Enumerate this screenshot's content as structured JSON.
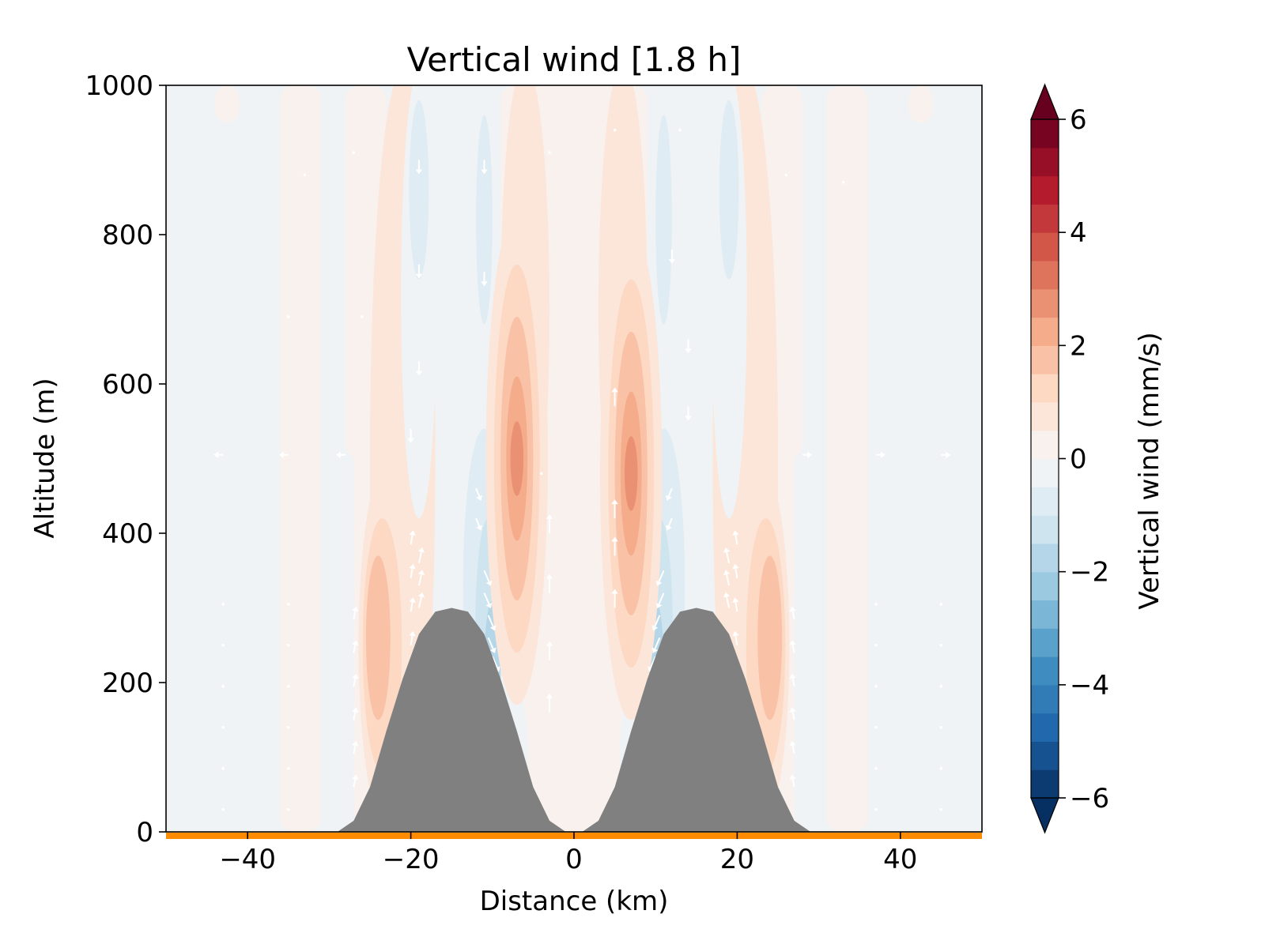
{
  "chart_data": {
    "type": "heatmap",
    "subtype": "filled-contour with wind vectors and terrain",
    "title": "Vertical wind [1.8 h]",
    "xlabel": "Distance (km)",
    "ylabel": "Altitude (m)",
    "xlim": [
      -50,
      50
    ],
    "ylim": [
      0,
      1000
    ],
    "x_ticks": [
      -40,
      -20,
      0,
      20,
      40
    ],
    "x_tick_labels": [
      "−40",
      "−20",
      "0",
      "20",
      "40"
    ],
    "y_ticks": [
      0,
      200,
      400,
      600,
      800,
      1000
    ],
    "y_tick_labels": [
      "0",
      "200",
      "400",
      "600",
      "800",
      "1000"
    ],
    "colorbar": {
      "label": "Vertical wind (mm/s)",
      "colormap": "RdBu_r",
      "vmin": -6,
      "vmax": 6,
      "levels": 24,
      "extend": "both",
      "ticks": [
        -6,
        -4,
        -2,
        0,
        2,
        4,
        6
      ],
      "tick_labels": [
        "−6",
        "−4",
        "−2",
        "0",
        "2",
        "4",
        "6"
      ]
    },
    "terrain": {
      "color": "#808080",
      "x": [
        -29,
        -27,
        -25,
        -23,
        -21,
        -19,
        -17,
        -15,
        -13,
        -11,
        -9,
        -7,
        -5,
        -3,
        -1,
        1,
        3,
        5,
        7,
        9,
        11,
        13,
        15,
        17,
        19,
        21,
        23,
        25,
        27,
        29
      ],
      "y": [
        0,
        15,
        60,
        135,
        205,
        265,
        295,
        300,
        295,
        265,
        205,
        135,
        60,
        15,
        0,
        0,
        15,
        60,
        135,
        205,
        265,
        295,
        300,
        295,
        265,
        205,
        135,
        60,
        15,
        0
      ]
    },
    "ground_line_color": "#ff8c00",
    "vector_color": "#ffffff",
    "field_features": [
      {
        "x": -7,
        "y": 500,
        "w": 2.6,
        "note": "updraft core"
      },
      {
        "x": 7,
        "y": 480,
        "w": 2.6,
        "note": "updraft core"
      },
      {
        "x": -23,
        "y": 250,
        "w": 1.6,
        "note": "updraft"
      },
      {
        "x": 23,
        "y": 250,
        "w": 1.6,
        "note": "updraft"
      },
      {
        "x": -11,
        "y": 260,
        "w": -2.2,
        "note": "downdraft"
      },
      {
        "x": 11,
        "y": 260,
        "w": -2.2,
        "note": "downdraft"
      },
      {
        "x": -19,
        "y": 700,
        "w": -0.8,
        "note": "downdraft"
      },
      {
        "x": 19,
        "y": 700,
        "w": -0.8,
        "note": "downdraft"
      },
      {
        "x": -11,
        "y": 750,
        "w": -0.6,
        "note": "downdraft"
      },
      {
        "x": 11,
        "y": 750,
        "w": -0.6,
        "note": "downdraft"
      }
    ]
  }
}
